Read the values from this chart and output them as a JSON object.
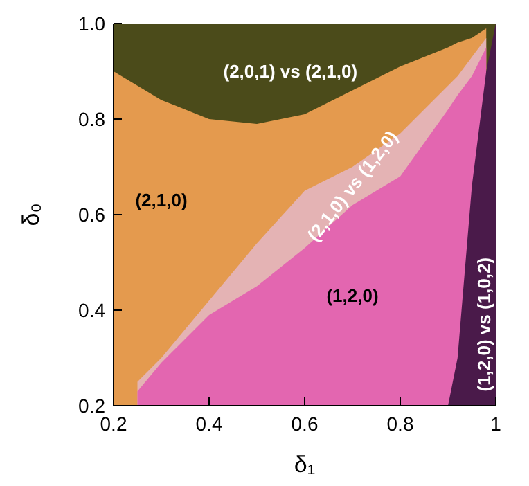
{
  "chart_data": {
    "type": "area",
    "xlabel": "δ₁",
    "ylabel": "δ₀",
    "xlim": [
      0.2,
      1
    ],
    "ylim": [
      0.2,
      1
    ],
    "xticks": [
      {
        "value": 0.2,
        "label": "0.2"
      },
      {
        "value": 0.4,
        "label": "0.4"
      },
      {
        "value": 0.6,
        "label": "0.6"
      },
      {
        "value": 0.8,
        "label": "0.8"
      },
      1
    ],
    "yticks": [
      {
        "value": 0.2,
        "label": "0.2"
      },
      {
        "value": 0.4,
        "label": "0.4"
      },
      {
        "value": 0.6,
        "label": "0.6"
      },
      {
        "value": 0.8,
        "label": "0.8"
      },
      {
        "value": 1,
        "label": "1.0"
      }
    ],
    "x": [
      0.2,
      0.25,
      0.3,
      0.4,
      0.5,
      0.6,
      0.7,
      0.8,
      0.9,
      0.92,
      0.95,
      0.98,
      1
    ],
    "series": [
      {
        "color": "#4b4b1a",
        "values": [
          1,
          1,
          1,
          1,
          1,
          1,
          1,
          1,
          1,
          1,
          1,
          1,
          1
        ]
      },
      {
        "color": "#e49a4e",
        "values": [
          0.9,
          0.87,
          0.84,
          0.8,
          0.79,
          0.81,
          0.86,
          0.91,
          0.95,
          0.96,
          0.97,
          0.99,
          null
        ]
      },
      {
        "color": "#e4b3b4",
        "values": [
          null,
          0.25,
          0.3,
          0.42,
          0.54,
          0.65,
          0.7,
          0.77,
          0.87,
          0.89,
          0.93,
          0.97,
          null
        ]
      },
      {
        "color": "#e366b0",
        "values": [
          null,
          0.23,
          0.29,
          0.39,
          0.45,
          0.53,
          0.62,
          0.68,
          0.82,
          0.85,
          0.89,
          0.95,
          null
        ]
      },
      {
        "color": "#4a1a4a",
        "values": [
          null,
          null,
          null,
          null,
          null,
          null,
          null,
          null,
          0.2,
          0.3,
          0.66,
          0.9,
          1
        ]
      }
    ],
    "annotations": [
      "(2,0,1) vs (2,1,0)",
      "(2,1,0)",
      "(2,1,0) vs (1,2,0)",
      "(1,2,0)",
      "(1,2,0) vs (1,0,2)"
    ]
  }
}
